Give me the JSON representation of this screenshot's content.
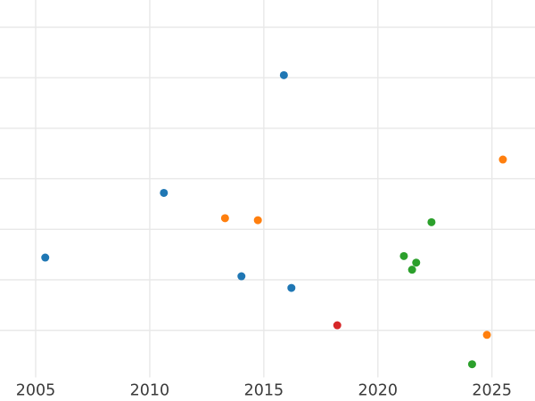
{
  "chart_data": {
    "type": "scatter",
    "title": "",
    "xlabel": "",
    "ylabel": "",
    "grid": true,
    "legend_position": "none",
    "x_ticks": [
      2005,
      2010,
      2015,
      2020,
      2025
    ],
    "x_tick_labels": [
      "2005",
      "2010",
      "2015",
      "2020",
      "2025"
    ],
    "x_range_visible": [
      2003.4,
      2026.9
    ],
    "y_tick_labels_visible": false,
    "y_gridline_units": [
      1,
      2,
      3,
      4,
      5,
      6,
      7
    ],
    "y_unit_note": "y values estimated in gridline units; y tick labels are not visible in the screenshot",
    "marker_diameter_px": 9,
    "series": [
      {
        "name": "blue",
        "color": "#1f77b4",
        "points": [
          {
            "x": 2005.42,
            "y": 2.44
          },
          {
            "x": 2010.62,
            "y": 3.72
          },
          {
            "x": 2014.02,
            "y": 2.07
          },
          {
            "x": 2015.88,
            "y": 6.05
          },
          {
            "x": 2016.21,
            "y": 1.84
          }
        ]
      },
      {
        "name": "orange",
        "color": "#ff7f0e",
        "points": [
          {
            "x": 2013.3,
            "y": 3.22
          },
          {
            "x": 2014.74,
            "y": 3.18
          },
          {
            "x": 2024.78,
            "y": 0.91
          },
          {
            "x": 2025.48,
            "y": 4.38
          }
        ]
      },
      {
        "name": "green",
        "color": "#2ca02c",
        "points": [
          {
            "x": 2021.14,
            "y": 2.47
          },
          {
            "x": 2021.5,
            "y": 2.2
          },
          {
            "x": 2021.68,
            "y": 2.34
          },
          {
            "x": 2022.35,
            "y": 3.14
          },
          {
            "x": 2024.13,
            "y": 0.33
          }
        ]
      },
      {
        "name": "red",
        "color": "#d62728",
        "points": [
          {
            "x": 2018.22,
            "y": 1.1
          }
        ]
      }
    ]
  },
  "style_colors": {
    "background": "#ffffff",
    "gridline": "#e8e8e8",
    "tick_label": "#3b3b3b"
  }
}
